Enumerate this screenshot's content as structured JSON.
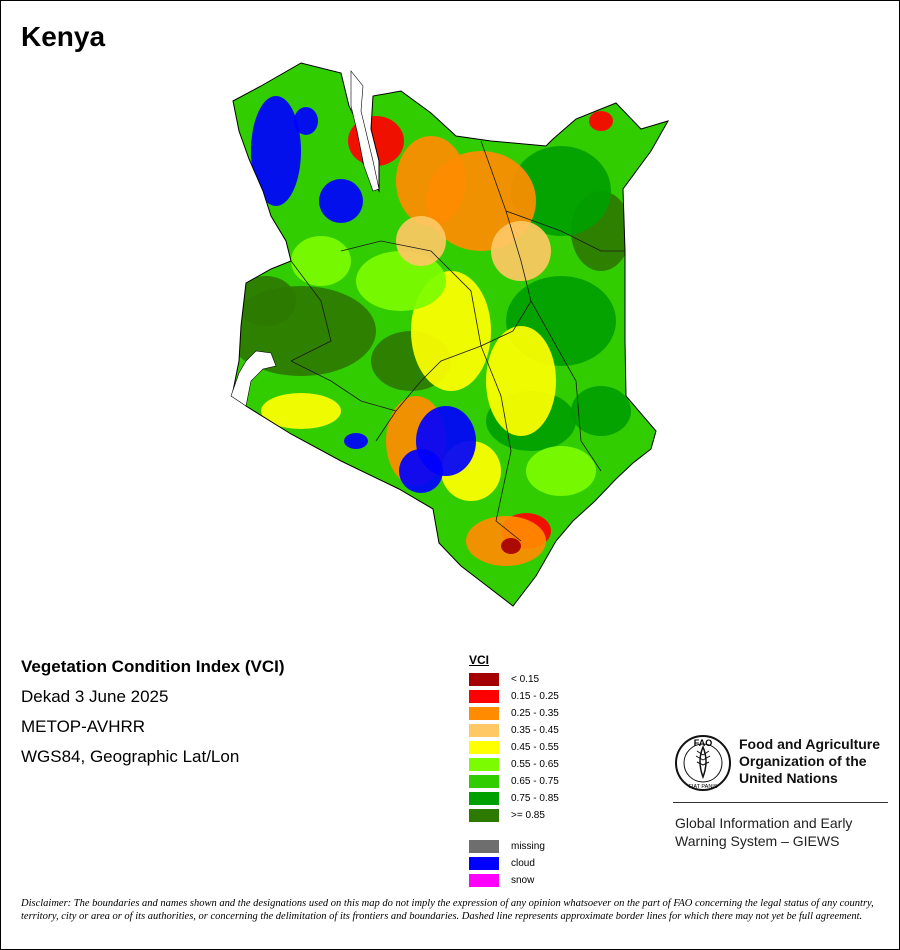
{
  "map": {
    "title": "Kenya",
    "region": "Kenya"
  },
  "info": {
    "product": "Vegetation Condition Index (VCI)",
    "period": "Dekad 3 June 2025",
    "sensor": "METOP-AVHRR",
    "projection": "WGS84, Geographic Lat/Lon"
  },
  "legend": {
    "title": "VCI",
    "classes": [
      {
        "label": "< 0.15",
        "color": "#a50000"
      },
      {
        "label": "0.15 - 0.25",
        "color": "#ff0000"
      },
      {
        "label": "0.25 - 0.35",
        "color": "#ff8c00"
      },
      {
        "label": "0.35 - 0.45",
        "color": "#ffc864"
      },
      {
        "label": "0.45 - 0.55",
        "color": "#ffff00"
      },
      {
        "label": "0.55 - 0.65",
        "color": "#7cfc00"
      },
      {
        "label": "0.65 - 0.75",
        "color": "#32cd00"
      },
      {
        "label": "0.75 - 0.85",
        "color": "#00a000"
      },
      {
        "label": ">= 0.85",
        "color": "#2d7a00"
      }
    ],
    "special": [
      {
        "label": "missing",
        "color": "#6e6e6e"
      },
      {
        "label": "cloud",
        "color": "#0000ff"
      },
      {
        "label": "snow",
        "color": "#ff00ff"
      }
    ]
  },
  "logo": {
    "emblem_text": "FAO",
    "motto": "FIAT PANIS",
    "org_line1": "Food and Agriculture",
    "org_line2": "Organization of the",
    "org_line3": "United Nations",
    "system_line1": "Global Information and Early",
    "system_line2": "Warning System – GIEWS"
  },
  "disclaimer": "Disclaimer: The boundaries and names shown and the designations used on this map do not imply the expression of any opinion whatsoever on the part of FAO concerning the legal status of any country, territory, city or area or of its authorities, or concerning the delimitation of its frontiers and boundaries. Dashed line represents approximate border lines for which there may not yet be full agreement."
}
